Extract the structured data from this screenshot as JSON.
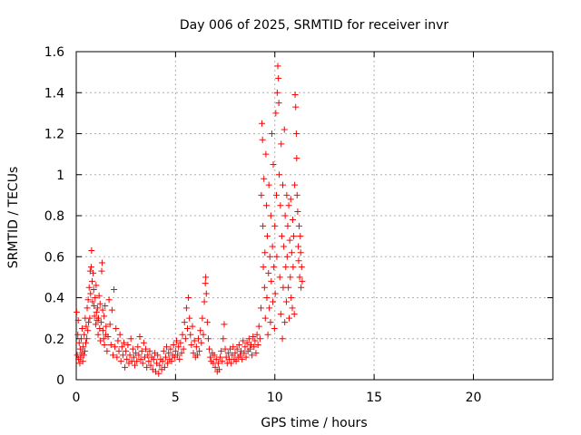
{
  "chart_data": {
    "type": "scatter",
    "title": "Day 006 of 2025, SRMTID for receiver invr",
    "xlabel": "GPS time / hours",
    "ylabel": "SRMTID / TECUs",
    "xlim": [
      0,
      24
    ],
    "ylim": [
      0,
      1.6
    ],
    "x_ticks": [
      0,
      5,
      10,
      15,
      20
    ],
    "x_tick_labels": [
      "0",
      "5",
      "10",
      "15",
      "20"
    ],
    "y_ticks": [
      0,
      0.2,
      0.4,
      0.6,
      0.8,
      1.0,
      1.2,
      1.4,
      1.6
    ],
    "y_tick_labels": [
      "0",
      "0.2",
      "0.4",
      "0.6",
      "0.8",
      "1",
      "1.2",
      "1.4",
      "1.6"
    ],
    "grid": true,
    "marker": "+",
    "color": "#ff0000",
    "series": [
      {
        "name": "SRMTID",
        "points": [
          [
            0.02,
            0.33
          ],
          [
            0.05,
            0.12
          ],
          [
            0.08,
            0.22
          ],
          [
            0.1,
            0.29
          ],
          [
            0.12,
            0.1
          ],
          [
            0.15,
            0.18
          ],
          [
            0.18,
            0.08
          ],
          [
            0.2,
            0.15
          ],
          [
            0.22,
            0.11
          ],
          [
            0.25,
            0.2
          ],
          [
            0.28,
            0.13
          ],
          [
            0.3,
            0.25
          ],
          [
            0.33,
            0.09
          ],
          [
            0.35,
            0.16
          ],
          [
            0.38,
            0.12
          ],
          [
            0.4,
            0.22
          ],
          [
            0.43,
            0.14
          ],
          [
            0.45,
            0.3
          ],
          [
            0.48,
            0.18
          ],
          [
            0.5,
            0.26
          ],
          [
            0.53,
            0.2
          ],
          [
            0.55,
            0.35
          ],
          [
            0.58,
            0.24
          ],
          [
            0.6,
            0.39
          ],
          [
            0.62,
            0.28
          ],
          [
            0.65,
            0.45
          ],
          [
            0.68,
            0.3
          ],
          [
            0.7,
            0.53
          ],
          [
            0.72,
            0.42
          ],
          [
            0.75,
            0.55
          ],
          [
            0.77,
            0.63
          ],
          [
            0.8,
            0.48
          ],
          [
            0.82,
            0.38
          ],
          [
            0.85,
            0.52
          ],
          [
            0.88,
            0.44
          ],
          [
            0.9,
            0.36
          ],
          [
            0.92,
            0.31
          ],
          [
            0.95,
            0.4
          ],
          [
            0.98,
            0.27
          ],
          [
            1.0,
            0.46
          ],
          [
            1.02,
            0.33
          ],
          [
            1.05,
            0.29
          ],
          [
            1.08,
            0.35
          ],
          [
            1.1,
            0.22
          ],
          [
            1.12,
            0.3
          ],
          [
            1.15,
            0.41
          ],
          [
            1.18,
            0.25
          ],
          [
            1.2,
            0.37
          ],
          [
            1.22,
            0.19
          ],
          [
            1.25,
            0.28
          ],
          [
            1.28,
            0.53
          ],
          [
            1.3,
            0.57
          ],
          [
            1.33,
            0.34
          ],
          [
            1.35,
            0.24
          ],
          [
            1.38,
            0.2
          ],
          [
            1.4,
            0.31
          ],
          [
            1.42,
            0.17
          ],
          [
            1.45,
            0.36
          ],
          [
            1.48,
            0.22
          ],
          [
            1.5,
            0.26
          ],
          [
            1.55,
            0.14
          ],
          [
            1.6,
            0.21
          ],
          [
            1.65,
            0.39
          ],
          [
            1.7,
            0.27
          ],
          [
            1.75,
            0.17
          ],
          [
            1.8,
            0.34
          ],
          [
            1.85,
            0.12
          ],
          [
            1.9,
            0.44
          ],
          [
            1.95,
            0.16
          ],
          [
            2.0,
            0.25
          ],
          [
            2.05,
            0.11
          ],
          [
            2.1,
            0.19
          ],
          [
            2.15,
            0.14
          ],
          [
            2.2,
            0.22
          ],
          [
            2.25,
            0.09
          ],
          [
            2.3,
            0.16
          ],
          [
            2.35,
            0.12
          ],
          [
            2.4,
            0.18
          ],
          [
            2.45,
            0.06
          ],
          [
            2.5,
            0.14
          ],
          [
            2.55,
            0.1
          ],
          [
            2.6,
            0.17
          ],
          [
            2.65,
            0.08
          ],
          [
            2.7,
            0.12
          ],
          [
            2.75,
            0.2
          ],
          [
            2.8,
            0.09
          ],
          [
            2.85,
            0.15
          ],
          [
            2.9,
            0.11
          ],
          [
            2.95,
            0.07
          ],
          [
            3.0,
            0.13
          ],
          [
            3.05,
            0.09
          ],
          [
            3.1,
            0.16
          ],
          [
            3.15,
            0.12
          ],
          [
            3.2,
            0.21
          ],
          [
            3.25,
            0.1
          ],
          [
            3.3,
            0.14
          ],
          [
            3.35,
            0.08
          ],
          [
            3.4,
            0.18
          ],
          [
            3.45,
            0.11
          ],
          [
            3.5,
            0.15
          ],
          [
            3.55,
            0.06
          ],
          [
            3.6,
            0.12
          ],
          [
            3.65,
            0.09
          ],
          [
            3.7,
            0.14
          ],
          [
            3.75,
            0.07
          ],
          [
            3.8,
            0.11
          ],
          [
            3.85,
            0.05
          ],
          [
            3.9,
            0.1
          ],
          [
            3.95,
            0.13
          ],
          [
            4.0,
            0.04
          ],
          [
            4.05,
            0.08
          ],
          [
            4.1,
            0.12
          ],
          [
            4.15,
            0.03
          ],
          [
            4.2,
            0.07
          ],
          [
            4.25,
            0.1
          ],
          [
            4.3,
            0.05
          ],
          [
            4.35,
            0.09
          ],
          [
            4.4,
            0.14
          ],
          [
            4.45,
            0.06
          ],
          [
            4.5,
            0.11
          ],
          [
            4.55,
            0.16
          ],
          [
            4.6,
            0.08
          ],
          [
            4.65,
            0.13
          ],
          [
            4.7,
            0.1
          ],
          [
            4.75,
            0.15
          ],
          [
            4.8,
            0.09
          ],
          [
            4.85,
            0.12
          ],
          [
            4.9,
            0.17
          ],
          [
            4.95,
            0.11
          ],
          [
            5.0,
            0.14
          ],
          [
            5.05,
            0.19
          ],
          [
            5.1,
            0.12
          ],
          [
            5.15,
            0.16
          ],
          [
            5.2,
            0.1
          ],
          [
            5.25,
            0.18
          ],
          [
            5.3,
            0.13
          ],
          [
            5.35,
            0.22
          ],
          [
            5.4,
            0.15
          ],
          [
            5.45,
            0.28
          ],
          [
            5.5,
            0.2
          ],
          [
            5.55,
            0.35
          ],
          [
            5.6,
            0.25
          ],
          [
            5.65,
            0.4
          ],
          [
            5.7,
            0.3
          ],
          [
            5.75,
            0.22
          ],
          [
            5.8,
            0.17
          ],
          [
            5.85,
            0.26
          ],
          [
            5.9,
            0.13
          ],
          [
            5.95,
            0.19
          ],
          [
            6.0,
            0.11
          ],
          [
            6.05,
            0.16
          ],
          [
            6.1,
            0.12
          ],
          [
            6.15,
            0.2
          ],
          [
            6.2,
            0.14
          ],
          [
            6.25,
            0.24
          ],
          [
            6.3,
            0.18
          ],
          [
            6.35,
            0.3
          ],
          [
            6.4,
            0.22
          ],
          [
            6.45,
            0.38
          ],
          [
            6.5,
            0.47
          ],
          [
            6.52,
            0.5
          ],
          [
            6.55,
            0.42
          ],
          [
            6.6,
            0.28
          ],
          [
            6.65,
            0.2
          ],
          [
            6.7,
            0.15
          ],
          [
            6.75,
            0.11
          ],
          [
            6.8,
            0.09
          ],
          [
            6.85,
            0.13
          ],
          [
            6.9,
            0.08
          ],
          [
            6.95,
            0.12
          ],
          [
            7.0,
            0.06
          ],
          [
            7.05,
            0.1
          ],
          [
            7.1,
            0.04
          ],
          [
            7.15,
            0.08
          ],
          [
            7.2,
            0.05
          ],
          [
            7.25,
            0.11
          ],
          [
            7.3,
            0.14
          ],
          [
            7.35,
            0.09
          ],
          [
            7.4,
            0.2
          ],
          [
            7.45,
            0.27
          ],
          [
            7.5,
            0.15
          ],
          [
            7.55,
            0.11
          ],
          [
            7.6,
            0.08
          ],
          [
            7.65,
            0.13
          ],
          [
            7.7,
            0.1
          ],
          [
            7.75,
            0.15
          ],
          [
            7.8,
            0.08
          ],
          [
            7.85,
            0.12
          ],
          [
            7.9,
            0.16
          ],
          [
            7.95,
            0.1
          ],
          [
            8.0,
            0.13
          ],
          [
            8.05,
            0.09
          ],
          [
            8.1,
            0.15
          ],
          [
            8.15,
            0.11
          ],
          [
            8.2,
            0.17
          ],
          [
            8.25,
            0.12
          ],
          [
            8.3,
            0.14
          ],
          [
            8.35,
            0.1
          ],
          [
            8.4,
            0.19
          ],
          [
            8.45,
            0.13
          ],
          [
            8.5,
            0.16
          ],
          [
            8.55,
            0.11
          ],
          [
            8.6,
            0.18
          ],
          [
            8.65,
            0.14
          ],
          [
            8.7,
            0.2
          ],
          [
            8.75,
            0.15
          ],
          [
            8.8,
            0.17
          ],
          [
            8.85,
            0.12
          ],
          [
            8.9,
            0.21
          ],
          [
            8.95,
            0.16
          ],
          [
            9.0,
            0.19
          ],
          [
            9.05,
            0.13
          ],
          [
            9.1,
            0.22
          ],
          [
            9.15,
            0.17
          ],
          [
            9.2,
            0.26
          ],
          [
            9.25,
            0.2
          ],
          [
            9.3,
            0.35
          ],
          [
            9.32,
            0.9
          ],
          [
            9.35,
            1.25
          ],
          [
            9.38,
            1.17
          ],
          [
            9.4,
            0.75
          ],
          [
            9.42,
            0.55
          ],
          [
            9.45,
            0.98
          ],
          [
            9.48,
            0.45
          ],
          [
            9.5,
            0.62
          ],
          [
            9.52,
            0.3
          ],
          [
            9.55,
            1.1
          ],
          [
            9.58,
            0.85
          ],
          [
            9.6,
            0.4
          ],
          [
            9.62,
            0.7
          ],
          [
            9.65,
            0.22
          ],
          [
            9.68,
            0.52
          ],
          [
            9.7,
            0.95
          ],
          [
            9.72,
            0.35
          ],
          [
            9.75,
            0.6
          ],
          [
            9.78,
            0.28
          ],
          [
            9.8,
            0.8
          ],
          [
            9.82,
            0.48
          ],
          [
            9.85,
            1.2
          ],
          [
            9.88,
            0.65
          ],
          [
            9.9,
            0.38
          ],
          [
            9.92,
            1.05
          ],
          [
            9.95,
            0.55
          ],
          [
            9.98,
            0.25
          ],
          [
            10.0,
            0.75
          ],
          [
            10.02,
            0.42
          ],
          [
            10.05,
            1.3
          ],
          [
            10.08,
            0.9
          ],
          [
            10.1,
            0.6
          ],
          [
            10.12,
            1.4
          ],
          [
            10.15,
            1.53
          ],
          [
            10.18,
            1.47
          ],
          [
            10.2,
            1.35
          ],
          [
            10.22,
            1.0
          ],
          [
            10.25,
            0.5
          ],
          [
            10.28,
            0.85
          ],
          [
            10.3,
            0.32
          ],
          [
            10.32,
            1.15
          ],
          [
            10.35,
            0.7
          ],
          [
            10.38,
            0.2
          ],
          [
            10.4,
            0.95
          ],
          [
            10.42,
            0.45
          ],
          [
            10.45,
            0.65
          ],
          [
            10.48,
            1.22
          ],
          [
            10.5,
            0.28
          ],
          [
            10.52,
            0.8
          ],
          [
            10.55,
            0.55
          ],
          [
            10.58,
            0.38
          ],
          [
            10.6,
            0.9
          ],
          [
            10.62,
            0.6
          ],
          [
            10.65,
            0.75
          ],
          [
            10.68,
            0.45
          ],
          [
            10.7,
            0.85
          ],
          [
            10.72,
            0.3
          ],
          [
            10.75,
            0.68
          ],
          [
            10.78,
            0.5
          ],
          [
            10.8,
            0.88
          ],
          [
            10.82,
            0.4
          ],
          [
            10.85,
            0.62
          ],
          [
            10.88,
            0.35
          ],
          [
            10.9,
            0.78
          ],
          [
            10.92,
            0.55
          ],
          [
            10.95,
            0.7
          ],
          [
            10.98,
            0.32
          ],
          [
            11.0,
            0.95
          ],
          [
            11.02,
            1.39
          ],
          [
            11.05,
            1.33
          ],
          [
            11.08,
            1.2
          ],
          [
            11.1,
            1.08
          ],
          [
            11.12,
            0.9
          ],
          [
            11.15,
            0.82
          ],
          [
            11.18,
            0.65
          ],
          [
            11.2,
            0.58
          ],
          [
            11.22,
            0.75
          ],
          [
            11.25,
            0.5
          ],
          [
            11.28,
            0.7
          ],
          [
            11.3,
            0.62
          ],
          [
            11.32,
            0.45
          ],
          [
            11.35,
            0.55
          ],
          [
            11.38,
            0.48
          ]
        ]
      }
    ]
  }
}
